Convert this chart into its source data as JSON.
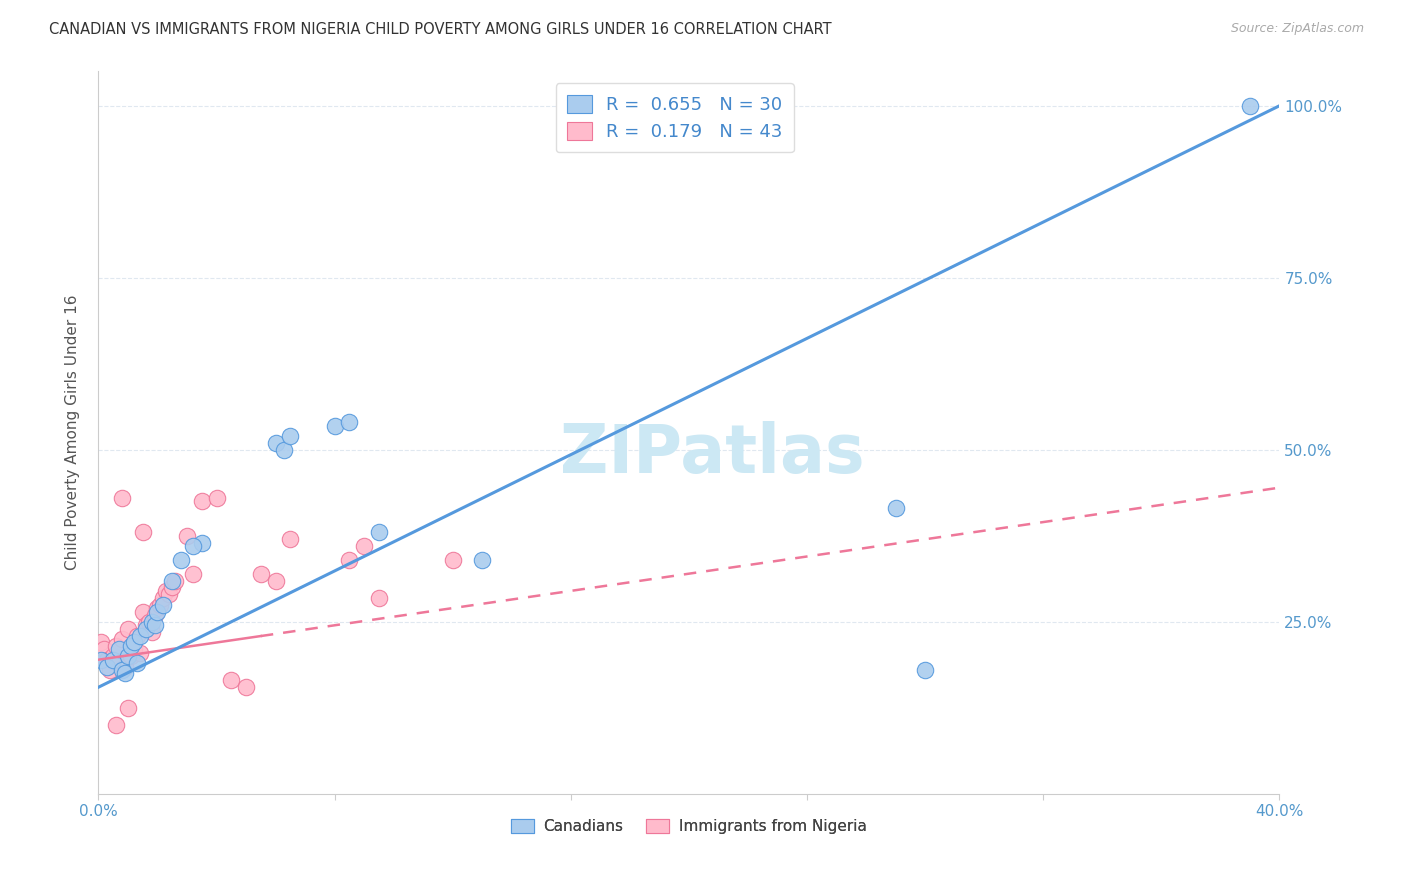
{
  "title": "CANADIAN VS IMMIGRANTS FROM NIGERIA CHILD POVERTY AMONG GIRLS UNDER 16 CORRELATION CHART",
  "source": "Source: ZipAtlas.com",
  "ylabel": "Child Poverty Among Girls Under 16",
  "xlim": [
    0.0,
    0.4
  ],
  "ylim": [
    0.0,
    1.05
  ],
  "x_ticks": [
    0.0,
    0.08,
    0.16,
    0.24,
    0.32,
    0.4
  ],
  "y_ticks": [
    0.25,
    0.5,
    0.75,
    1.0
  ],
  "y_tick_labels": [
    "25.0%",
    "50.0%",
    "75.0%",
    "100.0%"
  ],
  "canadians_x": [
    0.001,
    0.003,
    0.005,
    0.007,
    0.008,
    0.009,
    0.01,
    0.011,
    0.012,
    0.013,
    0.014,
    0.016,
    0.018,
    0.019,
    0.02,
    0.022,
    0.06,
    0.063,
    0.065,
    0.08,
    0.085,
    0.095,
    0.13,
    0.27,
    0.28,
    0.39,
    0.035,
    0.032,
    0.028,
    0.025
  ],
  "canadians_y": [
    0.195,
    0.185,
    0.195,
    0.21,
    0.18,
    0.175,
    0.2,
    0.215,
    0.22,
    0.19,
    0.23,
    0.24,
    0.25,
    0.245,
    0.265,
    0.275,
    0.51,
    0.5,
    0.52,
    0.535,
    0.54,
    0.38,
    0.34,
    0.415,
    0.18,
    1.0,
    0.365,
    0.36,
    0.34,
    0.31
  ],
  "nigeria_x": [
    0.001,
    0.002,
    0.003,
    0.004,
    0.005,
    0.006,
    0.007,
    0.008,
    0.009,
    0.01,
    0.011,
    0.012,
    0.013,
    0.014,
    0.015,
    0.016,
    0.017,
    0.018,
    0.019,
    0.02,
    0.021,
    0.022,
    0.023,
    0.024,
    0.025,
    0.026,
    0.03,
    0.032,
    0.035,
    0.04,
    0.045,
    0.05,
    0.055,
    0.06,
    0.065,
    0.085,
    0.09,
    0.095,
    0.01,
    0.015,
    0.12,
    0.008,
    0.006
  ],
  "nigeria_y": [
    0.22,
    0.21,
    0.195,
    0.18,
    0.2,
    0.215,
    0.19,
    0.225,
    0.185,
    0.24,
    0.2,
    0.21,
    0.23,
    0.205,
    0.265,
    0.245,
    0.25,
    0.235,
    0.26,
    0.27,
    0.275,
    0.285,
    0.295,
    0.29,
    0.3,
    0.31,
    0.375,
    0.32,
    0.425,
    0.43,
    0.165,
    0.155,
    0.32,
    0.31,
    0.37,
    0.34,
    0.36,
    0.285,
    0.125,
    0.38,
    0.34,
    0.43,
    0.1
  ],
  "canadian_color": "#aaccee",
  "canada_line_color": "#5599dd",
  "nigeria_color": "#ffbbcc",
  "nigeria_line_color": "#ee7799",
  "canada_trend_x": [
    0.0,
    0.4
  ],
  "canada_trend_y": [
    0.155,
    1.0
  ],
  "nigeria_trend_x": [
    0.0,
    0.4
  ],
  "nigeria_trend_y": [
    0.195,
    0.445
  ],
  "nigeria_solid_cutoff": 0.055,
  "legend_text_1": "R =  0.655   N = 30",
  "legend_text_2": "R =  0.179   N = 43",
  "watermark": "ZIPatlas",
  "watermark_color": "#cce8f4",
  "background_color": "#ffffff",
  "grid_color": "#e0e8f0"
}
